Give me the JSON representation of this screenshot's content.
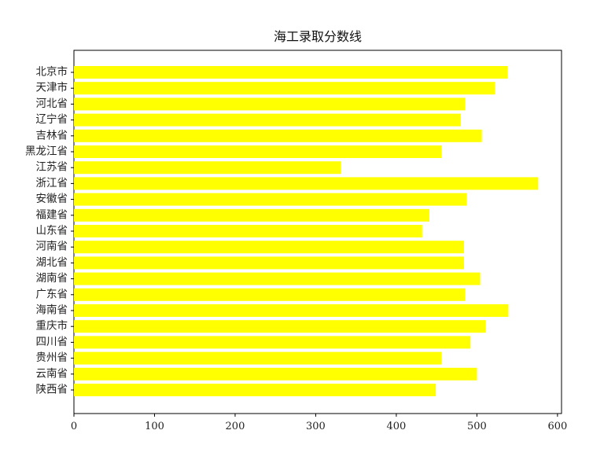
{
  "chart_data": {
    "type": "bar",
    "orientation": "horizontal",
    "title": "海工录取分数线",
    "xlabel": "",
    "ylabel": "",
    "xlim": [
      0,
      605
    ],
    "x_ticks": [
      0,
      100,
      200,
      300,
      400,
      500,
      600
    ],
    "grid": false,
    "bar_color": "#ffff00",
    "categories": [
      "北京市",
      "天津市",
      "河北省",
      "辽宁省",
      "吉林省",
      "黑龙江省",
      "江苏省",
      "浙江省",
      "安徽省",
      "福建省",
      "山东省",
      "河南省",
      "湖北省",
      "湖南省",
      "广东省",
      "海南省",
      "重庆市",
      "四川省",
      "贵州省",
      "云南省",
      "陕西省"
    ],
    "values": [
      538,
      522,
      485,
      480,
      506,
      456,
      331,
      576,
      487,
      441,
      432,
      484,
      484,
      504,
      485,
      539,
      511,
      492,
      456,
      500,
      449
    ]
  }
}
